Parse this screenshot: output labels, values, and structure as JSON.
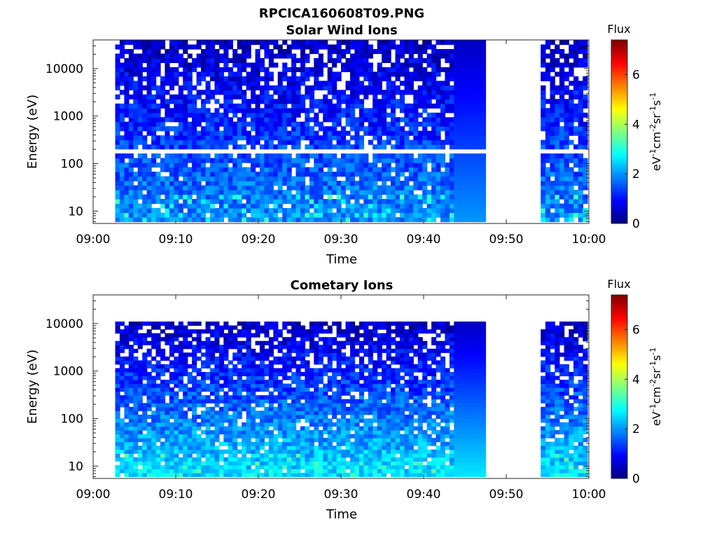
{
  "figure": {
    "title": "RPCICA160608T09.PNG"
  },
  "chart_data": [
    {
      "type": "heatmap",
      "title": "Solar Wind Ions",
      "xlabel": "Time",
      "ylabel": "Energy (eV)",
      "x_ticks": [
        "09:00",
        "09:10",
        "09:20",
        "09:30",
        "09:40",
        "09:50",
        "10:00"
      ],
      "xlim": [
        "09:00",
        "10:00"
      ],
      "y_scale": "log",
      "y_ticks": [
        "10",
        "100",
        "1000",
        "10000"
      ],
      "ylim": [
        5.5,
        40000
      ],
      "colorbar": {
        "title": "Flux",
        "label": "eV-1cm-2sr-1s-1",
        "ticks": [
          "0",
          "2",
          "4",
          "6"
        ],
        "range": [
          0,
          7.4
        ],
        "colormap": "jet"
      },
      "data_segments": [
        {
          "start": "09:02:40",
          "end": "09:47:30",
          "energy_min": 6,
          "energy_max": 40000
        },
        {
          "start": "09:54:10",
          "end": "09:59:50",
          "energy_min": 6,
          "energy_max": 40000
        }
      ],
      "gap": {
        "start": "09:47:30",
        "end": "09:54:10"
      },
      "blank_energy_row_eV": 200,
      "typical_flux_high_energy": 0.5,
      "typical_flux_low_energy": 2.0,
      "max_flux": 3.3
    },
    {
      "type": "heatmap",
      "title": "Cometary Ions",
      "xlabel": "Time",
      "ylabel": "Energy (eV)",
      "x_ticks": [
        "09:00",
        "09:10",
        "09:20",
        "09:30",
        "09:40",
        "09:50",
        "10:00"
      ],
      "xlim": [
        "09:00",
        "10:00"
      ],
      "y_scale": "log",
      "y_ticks": [
        "10",
        "100",
        "1000",
        "10000"
      ],
      "ylim": [
        5.5,
        40000
      ],
      "colorbar": {
        "title": "Flux",
        "label": "eV-1cm-2sr-1s-1",
        "ticks": [
          "0",
          "2",
          "4",
          "6"
        ],
        "range": [
          0,
          7.4
        ],
        "colormap": "jet"
      },
      "data_segments": [
        {
          "start": "09:02:40",
          "end": "09:47:30",
          "energy_min": 6,
          "energy_max": 11000
        },
        {
          "start": "09:54:10",
          "end": "09:59:50",
          "energy_min": 6,
          "energy_max": 11000
        }
      ],
      "gap": {
        "start": "09:47:30",
        "end": "09:54:10"
      },
      "typical_flux_high_energy": 0.5,
      "typical_flux_low_energy": 2.6,
      "max_flux": 3.5
    }
  ]
}
